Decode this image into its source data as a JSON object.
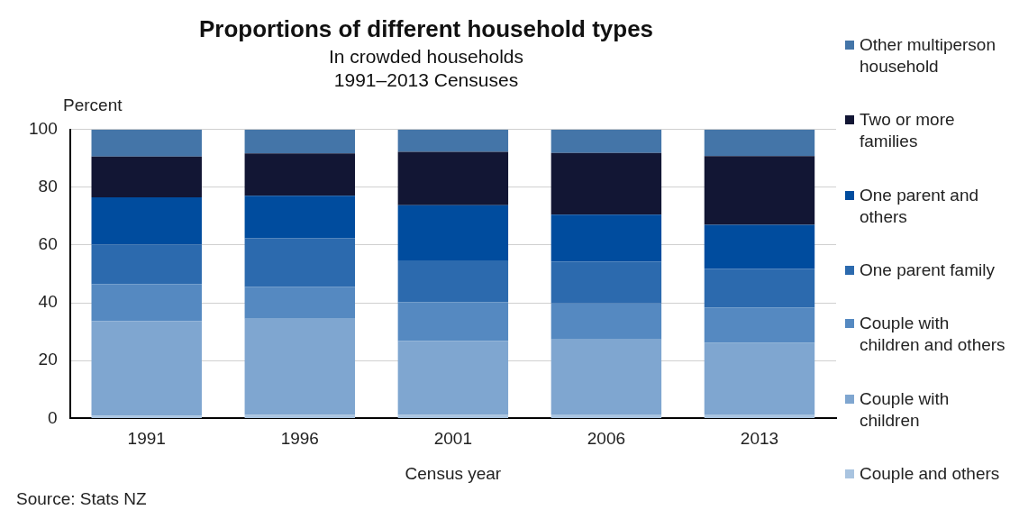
{
  "chart_data": {
    "type": "bar",
    "stacked": true,
    "title": "Proportions of different household types",
    "subtitle": "In crowded households\n1991–2013 Censuses",
    "xlabel": "Census year",
    "ylabel": "Percent",
    "categories": [
      "1991",
      "1996",
      "2001",
      "2006",
      "2013"
    ],
    "ylim": [
      0,
      100
    ],
    "yticks": [
      0,
      20,
      40,
      60,
      80,
      100
    ],
    "grid": "y",
    "legend": "right",
    "annotations": [
      "Source: Stats NZ"
    ],
    "series": [
      {
        "name": "Couple and others",
        "color": "#a9c4e0",
        "values": [
          1.0,
          1.2,
          1.2,
          1.4,
          1.4
        ]
      },
      {
        "name": "Couple with children",
        "color": "#7fa6d0",
        "values": [
          32.7,
          33.3,
          25.6,
          25.9,
          24.8
        ]
      },
      {
        "name": "Couple with children and others",
        "color": "#5589c1",
        "values": [
          12.7,
          11.1,
          13.5,
          12.5,
          12.1
        ]
      },
      {
        "name": "One parent family",
        "color": "#2c6aae",
        "values": [
          13.8,
          16.8,
          14.4,
          14.4,
          13.4
        ]
      },
      {
        "name": "One parent and others",
        "color": "#004c9e",
        "values": [
          16.3,
          14.7,
          19.1,
          16.3,
          15.3
        ]
      },
      {
        "name": "Two or more families",
        "color": "#121634",
        "values": [
          14.1,
          14.6,
          18.5,
          21.4,
          23.8
        ]
      },
      {
        "name": "Other multiperson household",
        "color": "#4475a8",
        "values": [
          9.4,
          8.3,
          7.7,
          8.1,
          9.2
        ]
      }
    ]
  }
}
